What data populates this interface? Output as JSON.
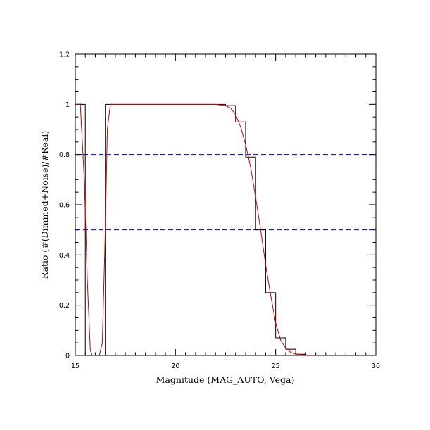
{
  "chart_data": {
    "type": "line",
    "xlabel": "Magnitude (MAG_AUTO, Vega)",
    "ylabel": "Ratio (#(Dimmed+Noise)/#Real)",
    "xlim": [
      15,
      30
    ],
    "ylim": [
      0,
      1.2
    ],
    "x_ticks": [
      15,
      20,
      25,
      30
    ],
    "x_tick_labels": [
      "15",
      "20",
      "25",
      "30"
    ],
    "y_ticks": [
      0,
      0.2,
      0.4,
      0.6,
      0.8,
      1,
      1.2
    ],
    "y_tick_labels": [
      "0",
      "0.2",
      "0.4",
      "0.6",
      "0.8",
      "1",
      "1.2"
    ],
    "grid": false,
    "reference_lines": [
      {
        "axis": "y",
        "value": 0.8,
        "style": "dashed",
        "color": "#0000cc"
      },
      {
        "axis": "y",
        "value": 0.5,
        "style": "dashed",
        "color": "#0000cc"
      }
    ],
    "series": [
      {
        "style": "step",
        "color": "#000000",
        "x": [
          15.0,
          15.5,
          15.5,
          16.5,
          16.5,
          22.5,
          22.5,
          23.0,
          23.0,
          23.5,
          23.5,
          24.0,
          24.0,
          24.5,
          24.5,
          25.0,
          25.0,
          25.5,
          25.5,
          26.0,
          26.0,
          26.5,
          26.5,
          30.0
        ],
        "y": [
          1.0,
          1.0,
          0.0,
          0.0,
          1.0,
          1.0,
          0.995,
          0.995,
          0.93,
          0.93,
          0.79,
          0.79,
          0.5,
          0.5,
          0.25,
          0.25,
          0.07,
          0.07,
          0.025,
          0.025,
          0.005,
          0.005,
          0.0,
          0.0
        ]
      },
      {
        "style": "smooth",
        "color": "#cc0000",
        "x": [
          15.0,
          15.25,
          15.45,
          15.6,
          15.75,
          15.85,
          16.0,
          16.2,
          16.35,
          16.5,
          16.6,
          16.75,
          17.0,
          20.0,
          22.0,
          22.5,
          22.75,
          23.0,
          23.25,
          23.5,
          23.75,
          24.0,
          24.25,
          24.5,
          24.75,
          25.0,
          25.25,
          25.5,
          25.75,
          26.0,
          26.5,
          27.0,
          30.0
        ],
        "y": [
          1.0,
          1.0,
          0.7,
          0.3,
          0.02,
          0.0,
          0.0,
          0.0,
          0.05,
          0.5,
          0.9,
          1.0,
          1.0,
          1.0,
          1.0,
          0.995,
          0.985,
          0.96,
          0.91,
          0.84,
          0.75,
          0.63,
          0.5,
          0.36,
          0.24,
          0.13,
          0.06,
          0.03,
          0.012,
          0.006,
          0.002,
          0.0,
          0.0
        ]
      }
    ]
  }
}
